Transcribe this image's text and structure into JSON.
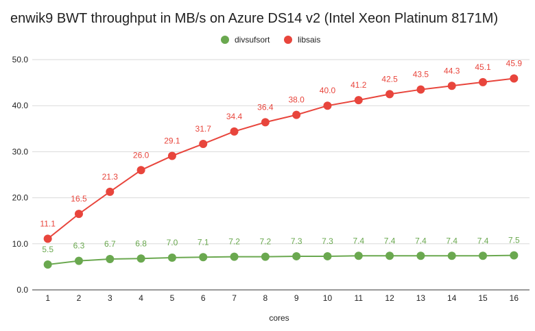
{
  "chart_data": {
    "type": "line",
    "title": "enwik9 BWT throughput in MB/s on Azure DS14 v2 (Intel Xeon Platinum 8171M)",
    "xlabel": "cores",
    "ylabel": "",
    "categories": [
      "1",
      "2",
      "3",
      "4",
      "5",
      "6",
      "7",
      "8",
      "9",
      "10",
      "11",
      "12",
      "13",
      "14",
      "15",
      "16"
    ],
    "ylim": [
      0,
      50
    ],
    "yticks": [
      "0.0",
      "10.0",
      "20.0",
      "30.0",
      "40.0",
      "50.0"
    ],
    "grid": true,
    "legend_position": "top-center",
    "series": [
      {
        "name": "divsufsort",
        "color": "#6aa84f",
        "values": [
          5.5,
          6.3,
          6.7,
          6.8,
          7.0,
          7.1,
          7.2,
          7.2,
          7.3,
          7.3,
          7.4,
          7.4,
          7.4,
          7.4,
          7.4,
          7.5
        ],
        "labels": [
          "5.5",
          "6.3",
          "6.7",
          "6.8",
          "7.0",
          "7.1",
          "7.2",
          "7.2",
          "7.3",
          "7.3",
          "7.4",
          "7.4",
          "7.4",
          "7.4",
          "7.4",
          "7.5"
        ]
      },
      {
        "name": "libsais",
        "color": "#e8453c",
        "values": [
          11.1,
          16.5,
          21.3,
          26.0,
          29.1,
          31.7,
          34.4,
          36.4,
          38.0,
          40.0,
          41.2,
          42.5,
          43.5,
          44.3,
          45.1,
          45.9
        ],
        "labels": [
          "11.1",
          "16.5",
          "21.3",
          "26.0",
          "29.1",
          "31.7",
          "34.4",
          "36.4",
          "38.0",
          "40.0",
          "41.2",
          "42.5",
          "43.5",
          "44.3",
          "45.1",
          "45.9"
        ]
      }
    ]
  }
}
